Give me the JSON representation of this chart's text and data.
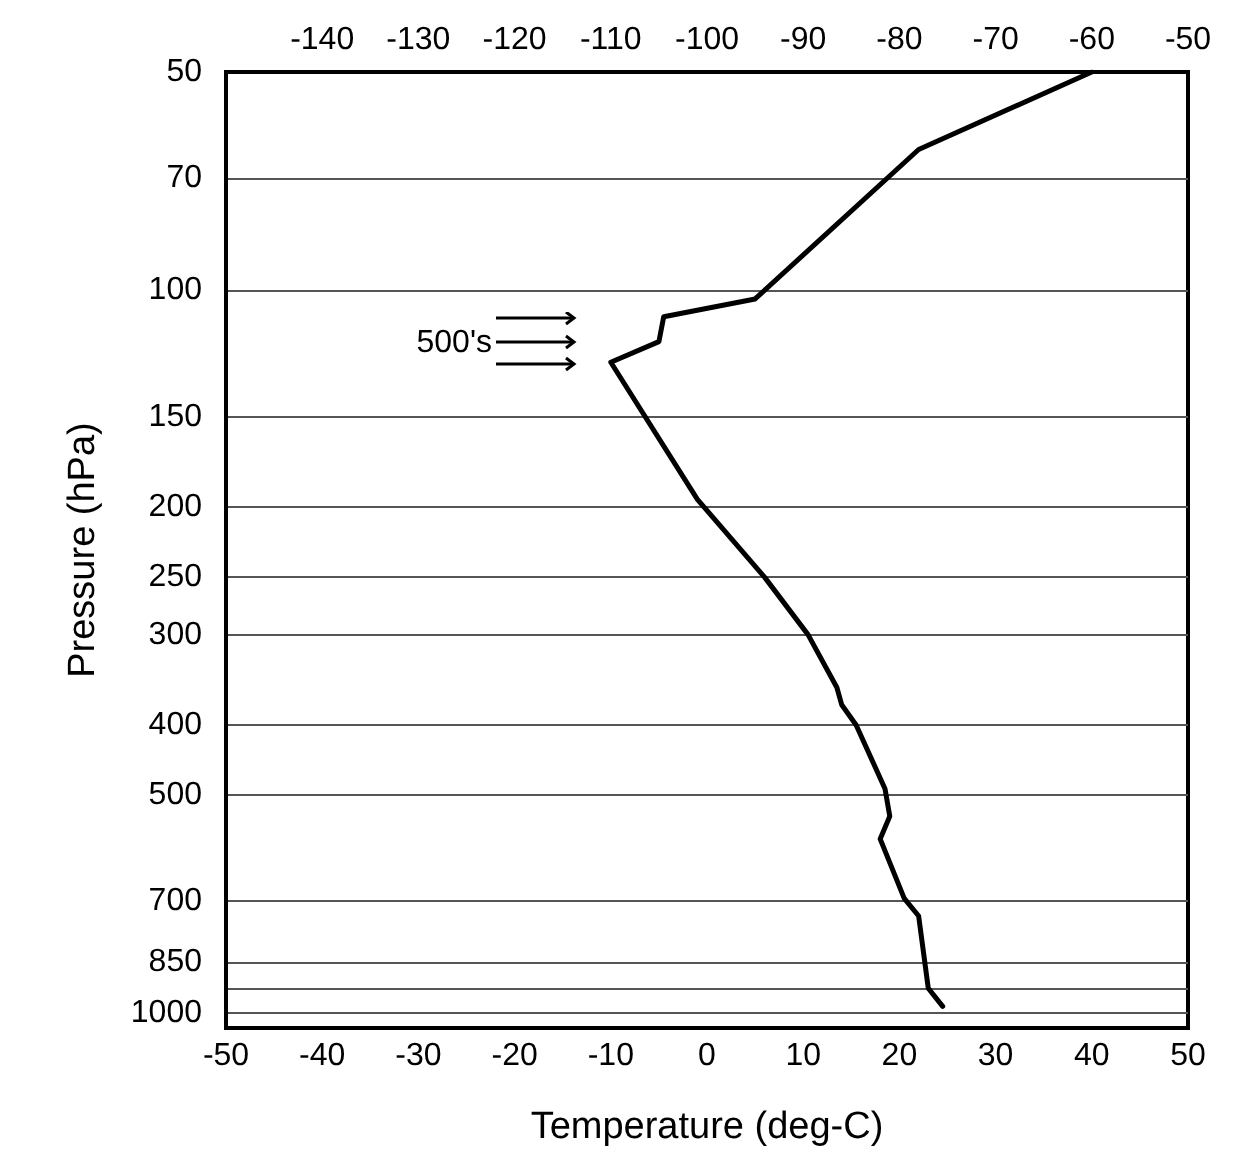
{
  "chart_data": {
    "type": "line",
    "xlabel": "Temperature (deg-C)",
    "ylabel": "Pressure (hPa)",
    "series": [
      {
        "color": "#000000",
        "x": [
          40,
          22,
          5,
          -4.5,
          -5,
          -10,
          -1,
          6,
          10.5,
          13.5,
          14,
          15.5,
          18.5,
          19,
          18,
          20.5,
          22,
          23,
          24.5
        ],
        "values": [
          50,
          64,
          103,
          109,
          118,
          126,
          195,
          250,
          300,
          355,
          375,
          400,
          490,
          535,
          575,
          695,
          735,
          925,
          980
        ]
      }
    ],
    "xlim": [
      -50,
      50
    ],
    "xticks": [
      -50,
      -40,
      -30,
      -20,
      -10,
      0,
      10,
      20,
      30,
      40,
      50
    ],
    "x2lim": [
      -150,
      -50
    ],
    "x2ticks": [
      -140,
      -130,
      -120,
      -110,
      -100,
      -90,
      -80,
      -70,
      -60,
      -50
    ],
    "ylim": [
      1050,
      50
    ],
    "yticks": [
      50,
      70,
      100,
      150,
      200,
      250,
      300,
      400,
      500,
      700,
      850,
      {
        "value": 925,
        "label": null
      },
      1000
    ],
    "log": "y",
    "grid": "y",
    "marker": "none",
    "line_style": "solid",
    "annotations": [
      "500's"
    ]
  }
}
